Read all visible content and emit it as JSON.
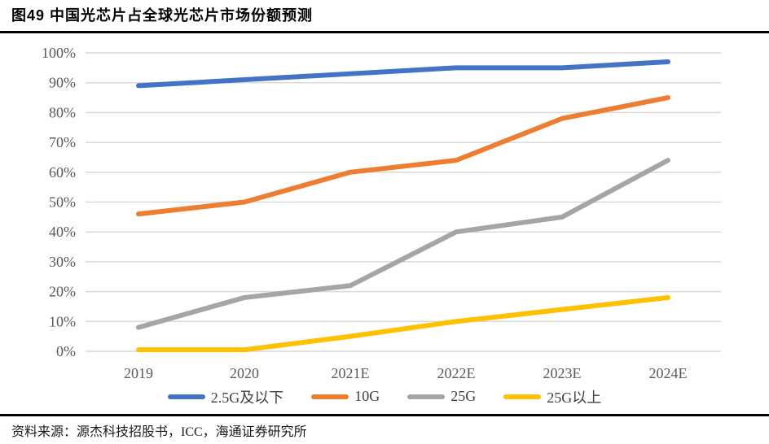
{
  "figure": {
    "title": "图49 中国光芯片占全球光芯片市场份额预测",
    "source": "资料来源：源杰科技招股书，ICC，海通证券研究所"
  },
  "chart_data": {
    "type": "line",
    "title": "中国光芯片占全球光芯片市场份额预测",
    "categories": [
      "2019",
      "2020",
      "2021E",
      "2022E",
      "2023E",
      "2024E"
    ],
    "series": [
      {
        "name": "2.5G及以下",
        "color": "#4472C4",
        "values": [
          89,
          91,
          93,
          95,
          95,
          97
        ]
      },
      {
        "name": "10G",
        "color": "#ED7D31",
        "values": [
          46,
          50,
          60,
          64,
          78,
          85
        ]
      },
      {
        "name": "25G",
        "color": "#A5A5A5",
        "values": [
          8,
          18,
          22,
          40,
          45,
          64
        ]
      },
      {
        "name": "25G以上",
        "color": "#FFC000",
        "values": [
          0.5,
          0.5,
          5,
          10,
          14,
          18
        ]
      }
    ],
    "ylim": [
      0,
      100
    ],
    "y_tick_step": 10,
    "y_ticks": [
      "0%",
      "10%",
      "20%",
      "30%",
      "40%",
      "50%",
      "60%",
      "70%",
      "80%",
      "90%",
      "100%"
    ],
    "grid": "horizontal",
    "gridline_color": "#D9D9D9",
    "axis_label_color": "#595959",
    "legend_position": "bottom"
  }
}
